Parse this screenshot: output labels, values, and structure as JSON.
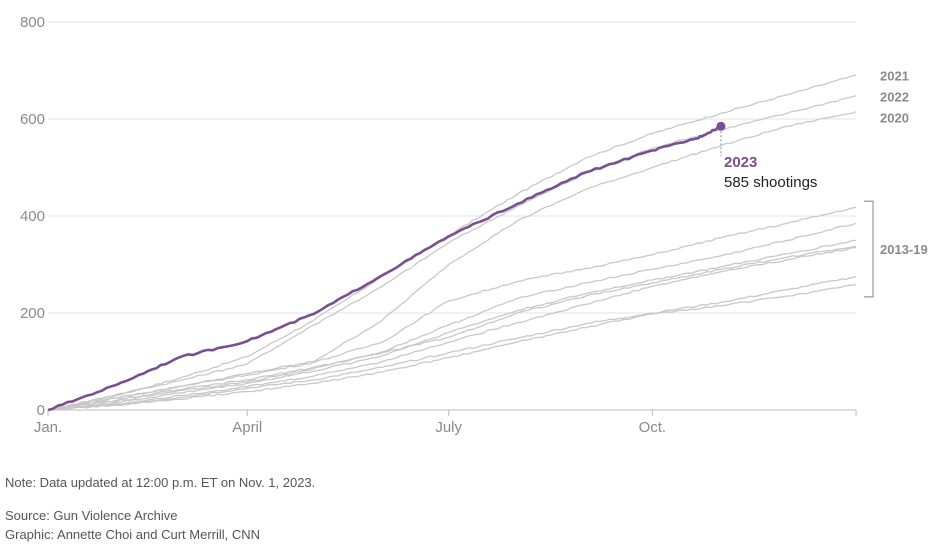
{
  "chart_data": {
    "type": "line",
    "x_axis": {
      "ticks": [
        {
          "label": "Jan.",
          "day": 0
        },
        {
          "label": "April",
          "day": 90
        },
        {
          "label": "July",
          "day": 181
        },
        {
          "label": "Oct.",
          "day": 273
        }
      ],
      "range_days": [
        0,
        365
      ]
    },
    "y_axis": {
      "ticks": [
        0,
        200,
        400,
        600,
        800
      ],
      "range": [
        0,
        800
      ]
    },
    "grid": "horizontal",
    "series": [
      {
        "name": "2023",
        "highlight": true,
        "color": "#7b4f8f",
        "points": [
          [
            0,
            0
          ],
          [
            31,
            52
          ],
          [
            59,
            108
          ],
          [
            90,
            142
          ],
          [
            120,
            198
          ],
          [
            151,
            278
          ],
          [
            181,
            358
          ],
          [
            212,
            425
          ],
          [
            243,
            490
          ],
          [
            273,
            535
          ],
          [
            293,
            560
          ],
          [
            304,
            585
          ]
        ]
      },
      {
        "name": "2021",
        "color": "#c8c8c8",
        "points": [
          [
            0,
            0
          ],
          [
            31,
            30
          ],
          [
            59,
            65
          ],
          [
            90,
            110
          ],
          [
            120,
            185
          ],
          [
            151,
            275
          ],
          [
            181,
            360
          ],
          [
            212,
            445
          ],
          [
            243,
            520
          ],
          [
            273,
            570
          ],
          [
            304,
            612
          ],
          [
            334,
            650
          ],
          [
            365,
            690
          ]
        ]
      },
      {
        "name": "2022",
        "color": "#c8c8c8",
        "points": [
          [
            0,
            0
          ],
          [
            31,
            32
          ],
          [
            59,
            60
          ],
          [
            90,
            95
          ],
          [
            120,
            175
          ],
          [
            151,
            255
          ],
          [
            181,
            345
          ],
          [
            212,
            420
          ],
          [
            243,
            488
          ],
          [
            273,
            540
          ],
          [
            304,
            578
          ],
          [
            334,
            612
          ],
          [
            365,
            648
          ]
        ]
      },
      {
        "name": "2020",
        "color": "#c8c8c8",
        "points": [
          [
            0,
            0
          ],
          [
            31,
            25
          ],
          [
            59,
            48
          ],
          [
            90,
            75
          ],
          [
            120,
            100
          ],
          [
            151,
            185
          ],
          [
            181,
            300
          ],
          [
            212,
            390
          ],
          [
            243,
            455
          ],
          [
            273,
            500
          ],
          [
            304,
            545
          ],
          [
            334,
            585
          ],
          [
            365,
            615
          ]
        ]
      },
      {
        "color": "#c8c8c8",
        "points": [
          [
            0,
            0
          ],
          [
            31,
            25
          ],
          [
            59,
            48
          ],
          [
            90,
            72
          ],
          [
            120,
            98
          ],
          [
            151,
            140
          ],
          [
            181,
            225
          ],
          [
            212,
            265
          ],
          [
            243,
            292
          ],
          [
            273,
            320
          ],
          [
            304,
            355
          ],
          [
            334,
            385
          ],
          [
            365,
            418
          ]
        ]
      },
      {
        "color": "#c8c8c8",
        "points": [
          [
            0,
            0
          ],
          [
            31,
            18
          ],
          [
            59,
            40
          ],
          [
            90,
            58
          ],
          [
            120,
            85
          ],
          [
            151,
            120
          ],
          [
            181,
            175
          ],
          [
            212,
            230
          ],
          [
            243,
            262
          ],
          [
            273,
            290
          ],
          [
            304,
            318
          ],
          [
            334,
            350
          ],
          [
            365,
            385
          ]
        ]
      },
      {
        "color": "#c8c8c8",
        "points": [
          [
            0,
            0
          ],
          [
            31,
            15
          ],
          [
            59,
            35
          ],
          [
            90,
            55
          ],
          [
            120,
            80
          ],
          [
            151,
            112
          ],
          [
            181,
            160
          ],
          [
            212,
            205
          ],
          [
            243,
            240
          ],
          [
            273,
            268
          ],
          [
            304,
            295
          ],
          [
            334,
            322
          ],
          [
            365,
            350
          ]
        ]
      },
      {
        "color": "#c8c8c8",
        "points": [
          [
            0,
            0
          ],
          [
            31,
            20
          ],
          [
            59,
            42
          ],
          [
            90,
            62
          ],
          [
            120,
            88
          ],
          [
            151,
            118
          ],
          [
            181,
            150
          ],
          [
            212,
            200
          ],
          [
            243,
            235
          ],
          [
            273,
            262
          ],
          [
            304,
            290
          ],
          [
            334,
            315
          ],
          [
            365,
            338
          ]
        ]
      },
      {
        "color": "#c8c8c8",
        "points": [
          [
            0,
            0
          ],
          [
            31,
            12
          ],
          [
            59,
            30
          ],
          [
            90,
            48
          ],
          [
            120,
            70
          ],
          [
            151,
            100
          ],
          [
            181,
            140
          ],
          [
            212,
            180
          ],
          [
            243,
            218
          ],
          [
            273,
            255
          ],
          [
            304,
            285
          ],
          [
            334,
            310
          ],
          [
            365,
            335
          ]
        ]
      },
      {
        "color": "#c8c8c8",
        "points": [
          [
            0,
            0
          ],
          [
            31,
            10
          ],
          [
            59,
            26
          ],
          [
            90,
            45
          ],
          [
            120,
            62
          ],
          [
            151,
            88
          ],
          [
            181,
            118
          ],
          [
            212,
            148
          ],
          [
            243,
            178
          ],
          [
            273,
            200
          ],
          [
            304,
            222
          ],
          [
            334,
            248
          ],
          [
            365,
            275
          ]
        ]
      },
      {
        "color": "#c8c8c8",
        "points": [
          [
            0,
            0
          ],
          [
            31,
            10
          ],
          [
            59,
            22
          ],
          [
            90,
            38
          ],
          [
            120,
            55
          ],
          [
            151,
            78
          ],
          [
            181,
            108
          ],
          [
            212,
            140
          ],
          [
            243,
            170
          ],
          [
            273,
            198
          ],
          [
            304,
            215
          ],
          [
            334,
            235
          ],
          [
            365,
            258
          ]
        ]
      }
    ],
    "labels": [
      {
        "text": "2021",
        "series": "2021"
      },
      {
        "text": "2022",
        "series": "2022"
      },
      {
        "text": "2020",
        "series": "2020"
      },
      {
        "text": "2013-19",
        "bracket": [
          258,
          418
        ]
      }
    ],
    "annotation": {
      "year": "2023",
      "value_text": "585 shootings",
      "point": [
        304,
        585
      ]
    }
  },
  "footer": {
    "note": "Note: Data updated at 12:00 p.m. ET on Nov. 1, 2023.",
    "source": "Source: Gun Violence Archive",
    "graphic": "Graphic: Annette Choi and Curt Merrill, CNN"
  }
}
